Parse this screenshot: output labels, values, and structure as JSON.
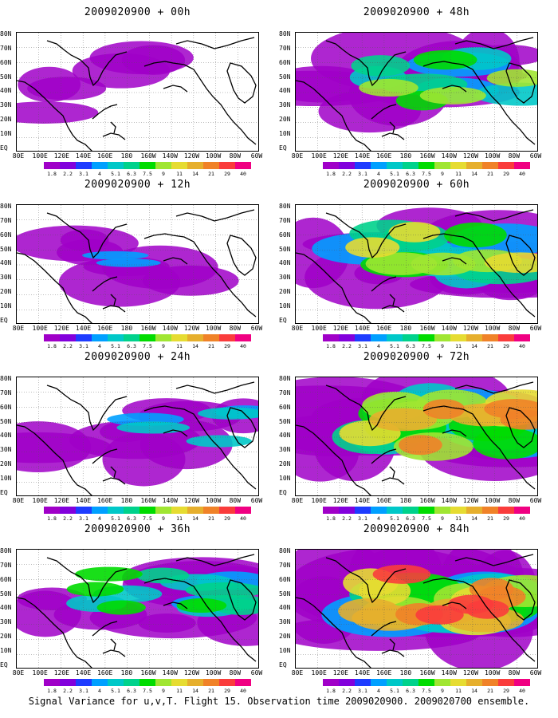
{
  "footer": "Signal Variance for u,v,T. Flight 15. Observation time 2009020900. 2009020700 ensemble.",
  "lat_labels": [
    "80N",
    "70N",
    "60N",
    "50N",
    "40N",
    "30N",
    "20N",
    "10N",
    "EQ"
  ],
  "lon_labels": [
    "80E",
    "100E",
    "120E",
    "140E",
    "160E",
    "180",
    "160W",
    "140W",
    "120W",
    "100W",
    "80W",
    "60W"
  ],
  "colorbar": {
    "labels": [
      "1.8",
      "2.2",
      "3.1",
      "4",
      "5.1",
      "6.3",
      "7.5",
      "9",
      "11",
      "14",
      "21",
      "29",
      "40"
    ],
    "colors": [
      "#a000c8",
      "#8200dc",
      "#1e3cff",
      "#00a0ff",
      "#00c8c8",
      "#00d28c",
      "#00dc00",
      "#a0e632",
      "#e6dc32",
      "#e6af2d",
      "#f08228",
      "#fa3c3c",
      "#f00082"
    ]
  },
  "panels": [
    {
      "id": "p00",
      "title": "2009020900 + 00h",
      "forecast_hour": 0
    },
    {
      "id": "p48",
      "title": "2009020900 + 48h",
      "forecast_hour": 48
    },
    {
      "id": "p12",
      "title": "2009020900 + 12h",
      "forecast_hour": 12
    },
    {
      "id": "p60",
      "title": "2009020900 + 60h",
      "forecast_hour": 60
    },
    {
      "id": "p24",
      "title": "2009020900 + 24h",
      "forecast_hour": 24
    },
    {
      "id": "p72",
      "title": "2009020900 + 72h",
      "forecast_hour": 72
    },
    {
      "id": "p36",
      "title": "2009020900 + 36h",
      "forecast_hour": 36
    },
    {
      "id": "p84",
      "title": "2009020900 + 84h",
      "forecast_hour": 84
    }
  ]
}
